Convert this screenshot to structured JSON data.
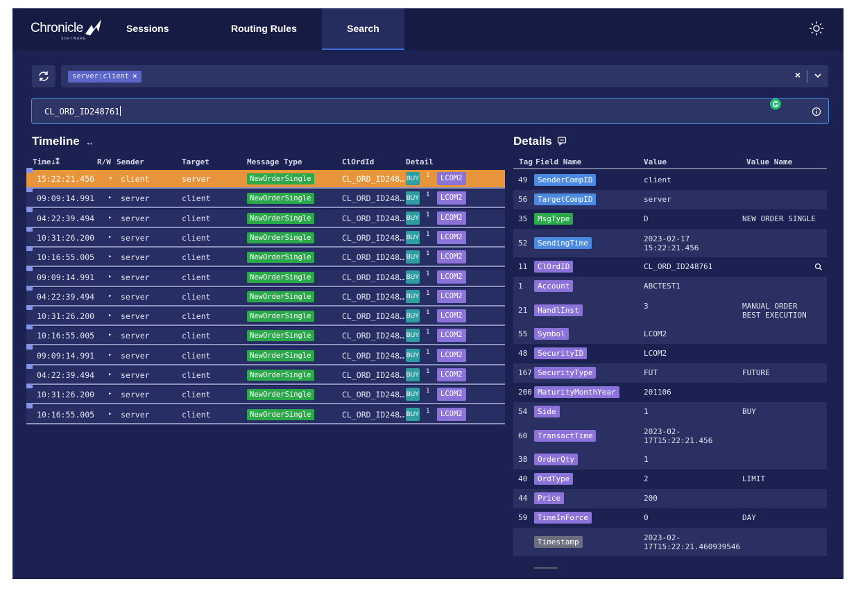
{
  "nav": {
    "logo_text": "Chronicle",
    "logo_sub": "SOFTWARE",
    "items": [
      {
        "label": "Sessions"
      },
      {
        "label": "Routing Rules"
      },
      {
        "label": "Search"
      }
    ]
  },
  "filter": {
    "chip": "server:client"
  },
  "search": {
    "value": "CL_ORD_ID248761"
  },
  "timeline": {
    "title": "Timeline",
    "headers": {
      "time": "Time",
      "rw": "R/W",
      "sender": "Sender",
      "target": "Target",
      "message_type": "Message Type",
      "clordid": "ClOrdId",
      "detail": "Detail"
    },
    "rows": [
      {
        "time": "15:22:21.456",
        "dir": "◂",
        "sender": "client",
        "target": "server",
        "message_type": "NewOrderSingle",
        "clordid": "CL_ORD_ID248…",
        "side": "BUY",
        "qty": "1",
        "symbol": "LCOM2"
      },
      {
        "time": "09:09:14.991",
        "dir": "▸",
        "sender": "server",
        "target": "client",
        "message_type": "NewOrderSingle",
        "clordid": "CL_ORD_ID248…",
        "side": "BUY",
        "qty": "1",
        "symbol": "LCOM2"
      },
      {
        "time": "04:22:39.494",
        "dir": "▸",
        "sender": "server",
        "target": "client",
        "message_type": "NewOrderSingle",
        "clordid": "CL_ORD_ID248…",
        "side": "BUY",
        "qty": "1",
        "symbol": "LCOM2"
      },
      {
        "time": "10:31:26.200",
        "dir": "▸",
        "sender": "server",
        "target": "client",
        "message_type": "NewOrderSingle",
        "clordid": "CL_ORD_ID248…",
        "side": "BUY",
        "qty": "1",
        "symbol": "LCOM2"
      },
      {
        "time": "10:16:55.005",
        "dir": "▸",
        "sender": "server",
        "target": "client",
        "message_type": "NewOrderSingle",
        "clordid": "CL_ORD_ID248…",
        "side": "BUY",
        "qty": "1",
        "symbol": "LCOM2"
      },
      {
        "time": "09:09:14.991",
        "dir": "▸",
        "sender": "server",
        "target": "client",
        "message_type": "NewOrderSingle",
        "clordid": "CL_ORD_ID248…",
        "side": "BUY",
        "qty": "1",
        "symbol": "LCOM2"
      },
      {
        "time": "04:22:39.494",
        "dir": "▸",
        "sender": "server",
        "target": "client",
        "message_type": "NewOrderSingle",
        "clordid": "CL_ORD_ID248…",
        "side": "BUY",
        "qty": "1",
        "symbol": "LCOM2"
      },
      {
        "time": "10:31:26.200",
        "dir": "▸",
        "sender": "server",
        "target": "client",
        "message_type": "NewOrderSingle",
        "clordid": "CL_ORD_ID248…",
        "side": "BUY",
        "qty": "1",
        "symbol": "LCOM2"
      },
      {
        "time": "10:16:55.005",
        "dir": "▸",
        "sender": "server",
        "target": "client",
        "message_type": "NewOrderSingle",
        "clordid": "CL_ORD_ID248…",
        "side": "BUY",
        "qty": "1",
        "symbol": "LCOM2"
      },
      {
        "time": "09:09:14.991",
        "dir": "▸",
        "sender": "server",
        "target": "client",
        "message_type": "NewOrderSingle",
        "clordid": "CL_ORD_ID248…",
        "side": "BUY",
        "qty": "1",
        "symbol": "LCOM2"
      },
      {
        "time": "04:22:39.494",
        "dir": "▸",
        "sender": "server",
        "target": "client",
        "message_type": "NewOrderSingle",
        "clordid": "CL_ORD_ID248…",
        "side": "BUY",
        "qty": "1",
        "symbol": "LCOM2"
      },
      {
        "time": "10:31:26.200",
        "dir": "▸",
        "sender": "server",
        "target": "client",
        "message_type": "NewOrderSingle",
        "clordid": "CL_ORD_ID248…",
        "side": "BUY",
        "qty": "1",
        "symbol": "LCOM2"
      },
      {
        "time": "10:16:55.005",
        "dir": "▸",
        "sender": "server",
        "target": "client",
        "message_type": "NewOrderSingle",
        "clordid": "CL_ORD_ID248…",
        "side": "BUY",
        "qty": "1",
        "symbol": "LCOM2"
      }
    ]
  },
  "details": {
    "title": "Details",
    "headers": {
      "tag": "Tag",
      "field": "Field Name",
      "value": "Value",
      "value_name": "Value Name"
    },
    "rows": [
      {
        "tag": "49",
        "field": "SenderCompID",
        "color": "#4b8ae0",
        "value": "client",
        "value_name": ""
      },
      {
        "tag": "56",
        "field": "TargetCompID",
        "color": "#4b8ae0",
        "value": "server",
        "value_name": ""
      },
      {
        "tag": "35",
        "field": "MsgType",
        "color": "#2aa84a",
        "value": "D",
        "value_name": "NEW ORDER SINGLE"
      },
      {
        "tag": "52",
        "field": "SendingTime",
        "color": "#4b8ae0",
        "value": "2023-02-17\n15:22:21.456",
        "value_name": ""
      },
      {
        "tag": "11",
        "field": "ClOrdID",
        "color": "#8b73d9",
        "value": "CL_ORD_ID248761",
        "value_name": ""
      },
      {
        "tag": "1",
        "field": "Account",
        "color": "#8b73d9",
        "value": "ABCTEST1",
        "value_name": ""
      },
      {
        "tag": "21",
        "field": "HandlInst",
        "color": "#8b73d9",
        "value": "3",
        "value_name": "MANUAL ORDER\nBEST EXECUTION"
      },
      {
        "tag": "55",
        "field": "Symbol",
        "color": "#8b73d9",
        "value": "LCOM2",
        "value_name": ""
      },
      {
        "tag": "48",
        "field": "SecurityID",
        "color": "#8b73d9",
        "value": "LCOM2",
        "value_name": ""
      },
      {
        "tag": "167",
        "field": "SecurityType",
        "color": "#8b73d9",
        "value": "FUT",
        "value_name": "FUTURE"
      },
      {
        "tag": "200",
        "field": "MaturityMonthYear",
        "color": "#8b73d9",
        "value": "201106",
        "value_name": ""
      },
      {
        "tag": "54",
        "field": "Side",
        "color": "#8b73d9",
        "value": "1",
        "value_name": "BUY"
      },
      {
        "tag": "60",
        "field": "TransactTime",
        "color": "#8b73d9",
        "value": "2023-02-\n17T15:22:21.456",
        "value_name": ""
      },
      {
        "tag": "38",
        "field": "OrderQty",
        "color": "#8b73d9",
        "value": "1",
        "value_name": ""
      },
      {
        "tag": "40",
        "field": "OrdType",
        "color": "#8b73d9",
        "value": "2",
        "value_name": "LIMIT"
      },
      {
        "tag": "44",
        "field": "Price",
        "color": "#8b73d9",
        "value": "200",
        "value_name": ""
      },
      {
        "tag": "59",
        "field": "TimeInForce",
        "color": "#8b73d9",
        "value": "0",
        "value_name": "DAY"
      },
      {
        "tag": "",
        "field": "Timestamp",
        "color": "#6b6f7e",
        "value": "2023-02-\n17T15:22:21.460939546",
        "value_name": ""
      }
    ]
  }
}
